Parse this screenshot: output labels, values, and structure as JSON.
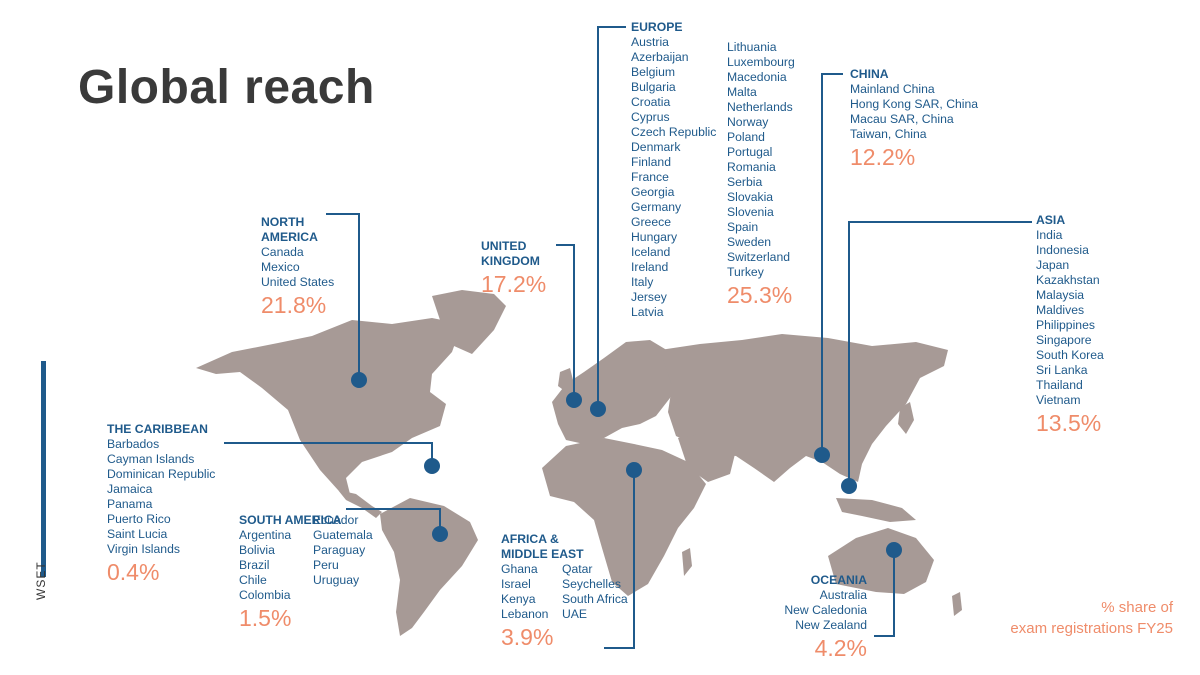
{
  "title": "Global reach",
  "brand": "WSET",
  "colors": {
    "accent_blue": "#1f5a8b",
    "percent_orange": "#ef8c6a",
    "map_land": "#a79a96",
    "title_gray": "#3a3a3a"
  },
  "regions": {
    "north_america": {
      "name": "NORTH AMERICA",
      "countries": [
        "Canada",
        "Mexico",
        "United States"
      ],
      "percent": "21.8%"
    },
    "united_kingdom": {
      "name": "UNITED KINGDOM",
      "countries": [],
      "percent": "17.2%"
    },
    "europe": {
      "name": "EUROPE",
      "countries_col1": [
        "Austria",
        "Azerbaijan",
        "Belgium",
        "Bulgaria",
        "Croatia",
        "Cyprus",
        "Czech Republic",
        "Denmark",
        "Finland",
        "France",
        "Georgia",
        "Germany",
        "Greece",
        "Hungary",
        "Iceland",
        "Ireland",
        "Italy",
        "Jersey",
        "Latvia"
      ],
      "countries_col2": [
        "Lithuania",
        "Luxembourg",
        "Macedonia",
        "Malta",
        "Netherlands",
        "Norway",
        "Poland",
        "Portugal",
        "Romania",
        "Serbia",
        "Slovakia",
        "Slovenia",
        "Spain",
        "Sweden",
        "Switzerland",
        "Turkey"
      ],
      "percent": "25.3%"
    },
    "china": {
      "name": "CHINA",
      "countries": [
        "Mainland China",
        "Hong Kong SAR, China",
        "Macau SAR, China",
        "Taiwan, China"
      ],
      "percent": "12.2%"
    },
    "asia": {
      "name": "ASIA",
      "countries": [
        "India",
        "Indonesia",
        "Japan",
        "Kazakhstan",
        "Malaysia",
        "Maldives",
        "Philippines",
        "Singapore",
        "South Korea",
        "Sri Lanka",
        "Thailand",
        "Vietnam"
      ],
      "percent": "13.5%"
    },
    "caribbean": {
      "name": "THE CARIBBEAN",
      "countries": [
        "Barbados",
        "Cayman Islands",
        "Dominican Republic",
        "Jamaica",
        "Panama",
        "Puerto Rico",
        "Saint Lucia",
        "Virgin Islands"
      ],
      "percent": "0.4%"
    },
    "south_america": {
      "name": "SOUTH AMERICA",
      "countries_col1": [
        "Argentina",
        "Bolivia",
        "Brazil",
        "Chile",
        "Colombia"
      ],
      "countries_col2": [
        "Ecuador",
        "Guatemala",
        "Paraguay",
        "Peru",
        "Uruguay"
      ],
      "percent": "1.5%"
    },
    "africa_me": {
      "name_line1": "AFRICA &",
      "name_line2": "MIDDLE EAST",
      "countries_col1": [
        "Ghana",
        "Israel",
        "Kenya",
        "Lebanon"
      ],
      "countries_col2": [
        "Qatar",
        "Seychelles",
        "South Africa",
        "UAE"
      ],
      "percent": "3.9%"
    },
    "oceania": {
      "name": "OCEANIA",
      "countries": [
        "Australia",
        "New Caledonia",
        "New Zealand"
      ],
      "percent": "4.2%"
    }
  },
  "footnote": {
    "line1": "% share of",
    "line2": "exam registrations FY25"
  }
}
